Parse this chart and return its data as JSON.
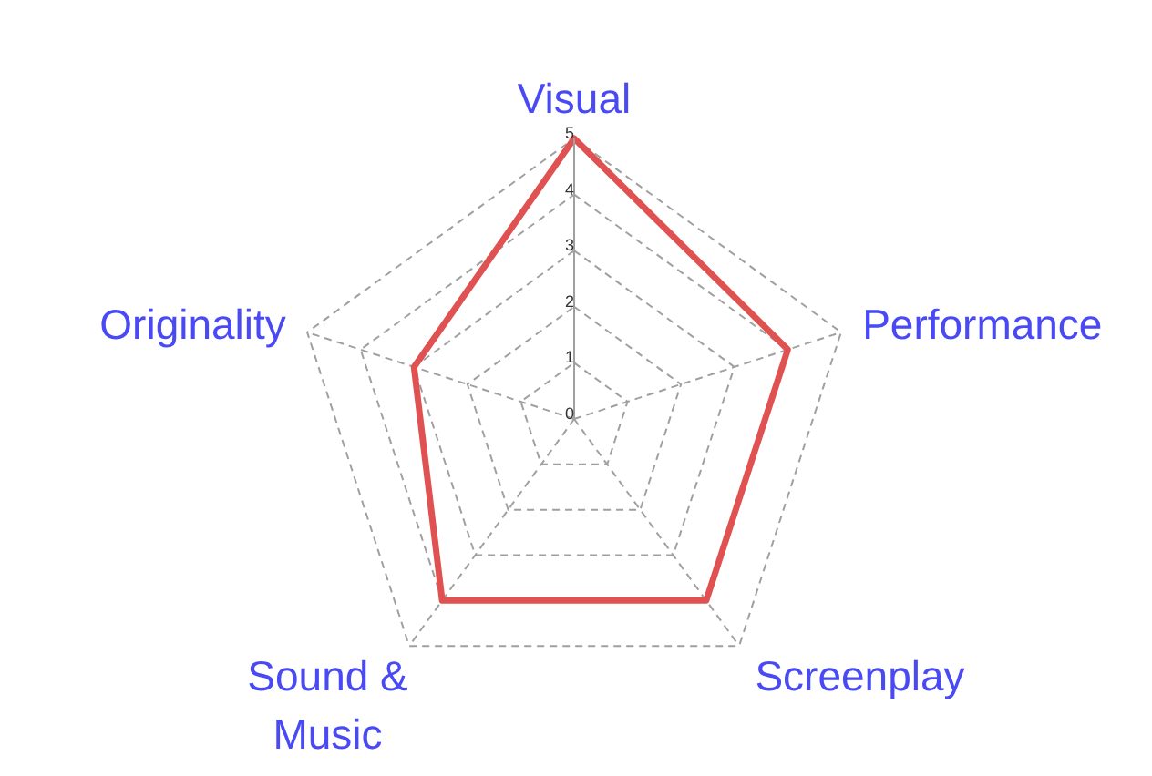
{
  "chart_data": {
    "type": "radar",
    "categories": [
      "Visual",
      "Performance",
      "Screenplay",
      "Sound & Music",
      "Originality"
    ],
    "series": [
      {
        "color": "#e05252",
        "values": [
          5,
          4,
          4,
          4,
          3
        ]
      }
    ],
    "ylim": [
      0,
      5
    ],
    "yticks": [
      0,
      1,
      2,
      3,
      4,
      5
    ],
    "grid": true,
    "marker": "none",
    "line_style": "solid"
  }
}
